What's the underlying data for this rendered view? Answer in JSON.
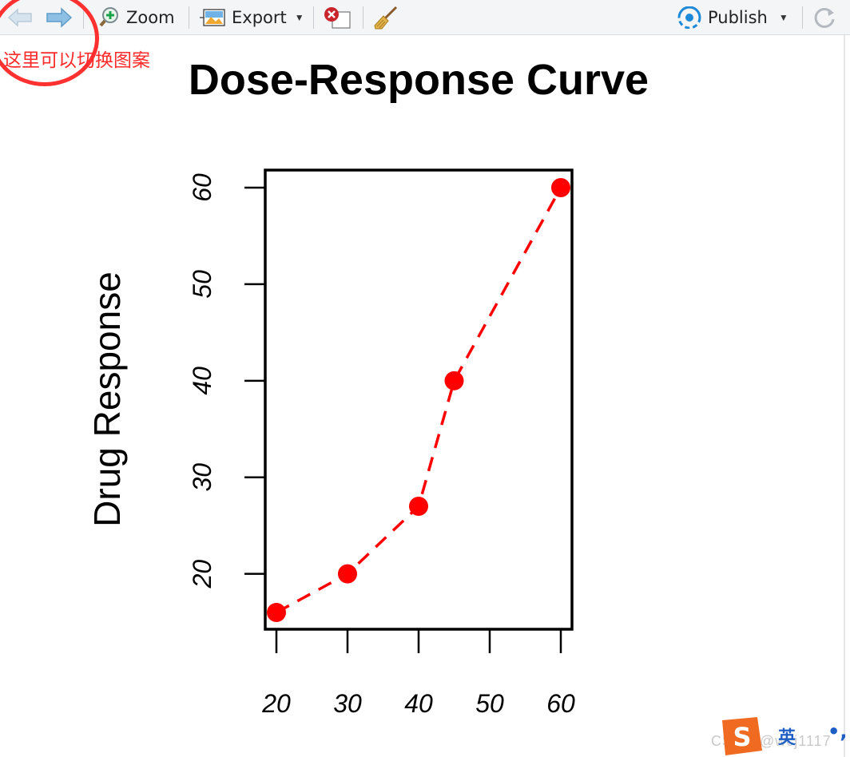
{
  "toolbar": {
    "zoom_label": "Zoom",
    "export_label": "Export",
    "publish_label": "Publish"
  },
  "annotation": {
    "text": "这里可以切换图案",
    "color": "#ff2b2b"
  },
  "ime": {
    "lang_label": "英",
    "punct_label": "•,"
  },
  "watermark": "CSDN @wcj1117",
  "icons": [
    "back-arrow-icon",
    "forward-arrow-icon",
    "zoom-icon",
    "export-image-icon",
    "remove-plot-icon",
    "broom-icon",
    "publish-icon",
    "refresh-icon",
    "sogou-icon"
  ],
  "chart_data": {
    "type": "line",
    "title": "Dose-Response Curve",
    "xlabel": "",
    "ylabel": "Drug Response",
    "x": [
      20,
      30,
      40,
      45,
      60
    ],
    "series": [
      {
        "values": [
          16,
          20,
          27,
          40,
          60
        ],
        "color": "#ff0000",
        "line_style": "dashed",
        "marker": "filled-circle"
      }
    ],
    "xlim": [
      20,
      60
    ],
    "ylim": [
      16,
      60
    ],
    "xticks": [
      "20",
      "30",
      "40",
      "50",
      "60"
    ],
    "yticks": [
      "20",
      "30",
      "40",
      "50",
      "60"
    ],
    "grid": false,
    "legend": "none"
  }
}
